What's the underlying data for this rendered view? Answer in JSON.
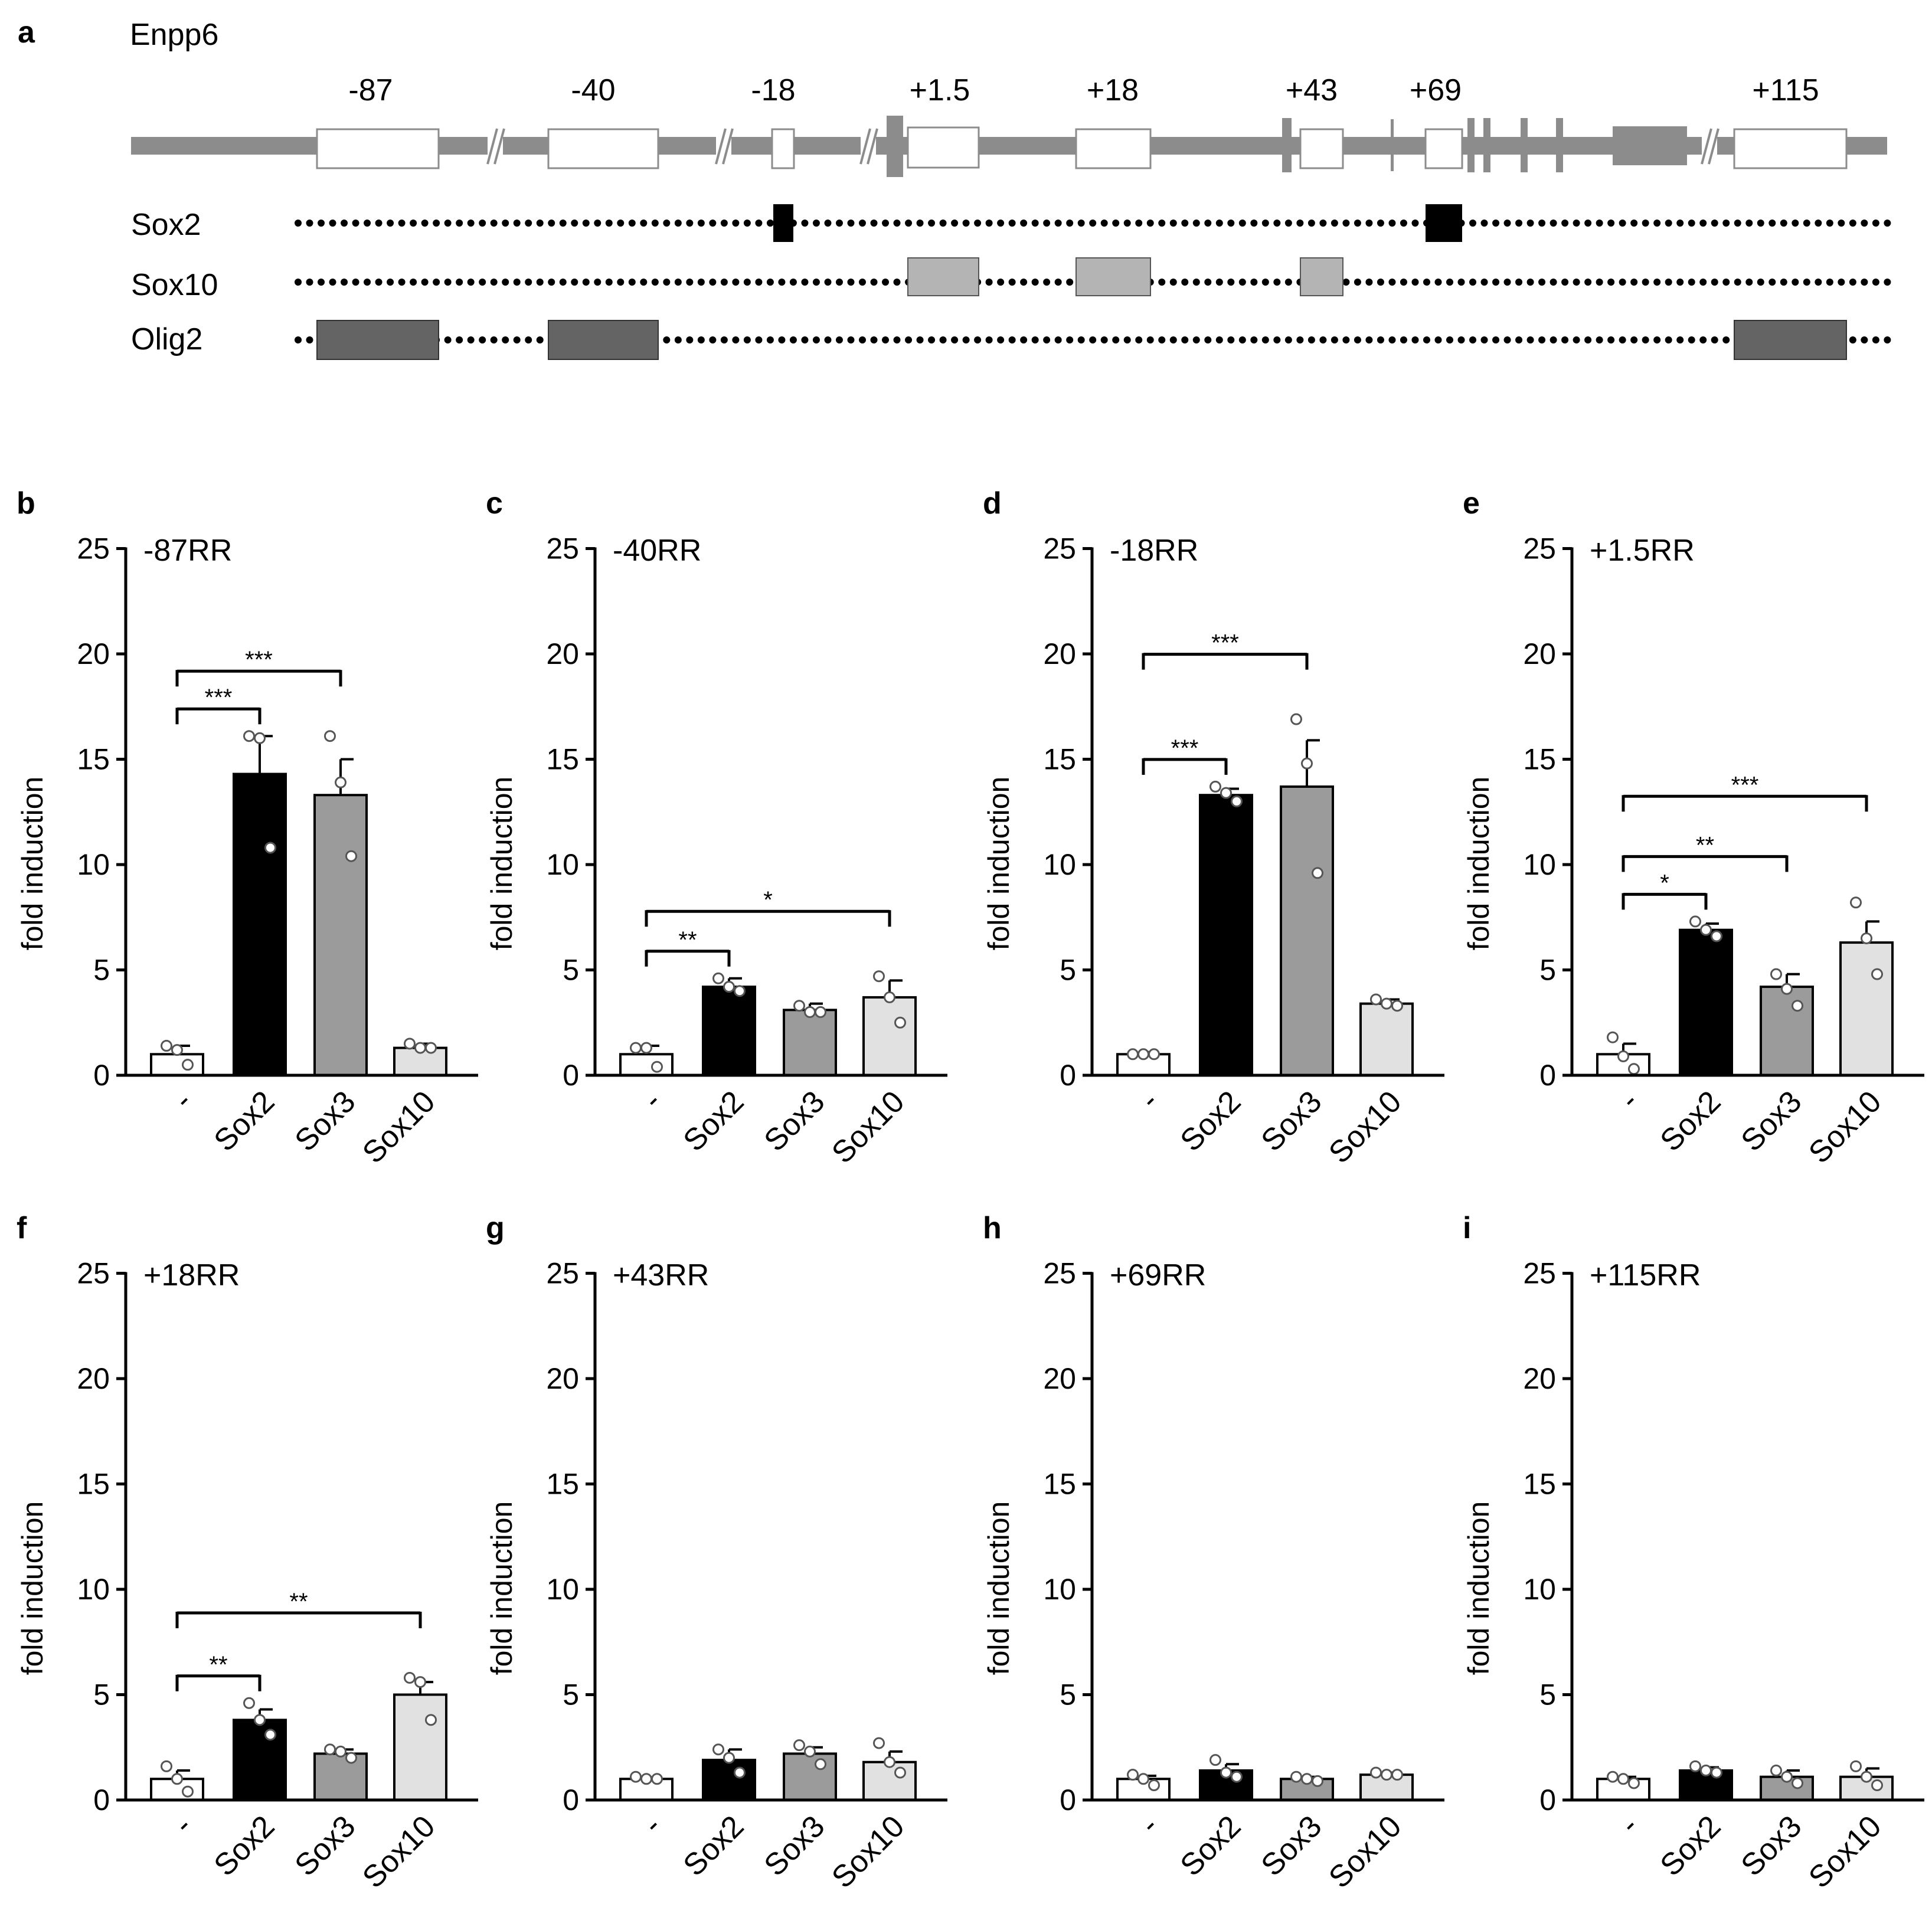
{
  "figure": {
    "gene_panel": {
      "label": "a",
      "gene": "Enpp6",
      "region_labels": [
        "-87",
        "-40",
        "-18",
        "+1.5",
        "+18",
        "+43",
        "+69",
        "+115"
      ],
      "tracks": [
        {
          "name": "Sox2",
          "color": "#000000",
          "regions": [
            "-18",
            "+69"
          ]
        },
        {
          "name": "Sox10",
          "color": "#b4b4b4",
          "regions": [
            "+1.5",
            "+18",
            "+43"
          ]
        },
        {
          "name": "Olig2",
          "color": "#646464",
          "regions": [
            "-87",
            "-40",
            "+115"
          ]
        }
      ],
      "colors": {
        "gene_line": "#8c8c8c"
      }
    }
  },
  "chart_data": [
    {
      "panel": "b",
      "type": "bar",
      "title": "-87RR",
      "ylabel": "fold induction",
      "ylim": [
        0,
        25
      ],
      "yticks": [
        0,
        5,
        10,
        15,
        20,
        25
      ],
      "categories": [
        "-",
        "Sox2",
        "Sox3",
        "Sox10"
      ],
      "values": [
        1.0,
        14.3,
        13.3,
        1.3
      ],
      "errors": [
        0.4,
        1.8,
        1.7,
        0.2
      ],
      "points": [
        [
          1.4,
          1.2,
          0.5
        ],
        [
          16.1,
          16.0,
          10.8
        ],
        [
          16.1,
          13.9,
          10.4
        ],
        [
          1.5,
          1.3,
          1.3
        ]
      ],
      "significance": [
        {
          "from": 0,
          "to": 1,
          "label": "***"
        },
        {
          "from": 0,
          "to": 2,
          "label": "***"
        }
      ]
    },
    {
      "panel": "c",
      "type": "bar",
      "title": "-40RR",
      "ylabel": "fold induction",
      "ylim": [
        0,
        25
      ],
      "yticks": [
        0,
        5,
        10,
        15,
        20,
        25
      ],
      "categories": [
        "-",
        "Sox2",
        "Sox3",
        "Sox10"
      ],
      "values": [
        1.0,
        4.2,
        3.1,
        3.7
      ],
      "errors": [
        0.4,
        0.4,
        0.3,
        0.8
      ],
      "points": [
        [
          1.3,
          1.3,
          0.4
        ],
        [
          4.6,
          4.2,
          4.0
        ],
        [
          3.3,
          3.0,
          3.0
        ],
        [
          4.7,
          3.7,
          2.5
        ]
      ],
      "significance": [
        {
          "from": 0,
          "to": 1,
          "label": "**"
        },
        {
          "from": 0,
          "to": 3,
          "label": "*"
        }
      ]
    },
    {
      "panel": "d",
      "type": "bar",
      "title": "-18RR",
      "ylabel": "fold induction",
      "ylim": [
        0,
        25
      ],
      "yticks": [
        0,
        5,
        10,
        15,
        20,
        25
      ],
      "categories": [
        "-",
        "Sox2",
        "Sox3",
        "Sox10"
      ],
      "values": [
        1.0,
        13.3,
        13.7,
        3.4
      ],
      "errors": [
        0.1,
        0.3,
        2.2,
        0.2
      ],
      "points": [
        [
          1.0,
          1.0,
          1.0
        ],
        [
          13.7,
          13.4,
          13.0
        ],
        [
          16.9,
          14.8,
          9.6
        ],
        [
          3.6,
          3.4,
          3.3
        ]
      ],
      "significance": [
        {
          "from": 0,
          "to": 1,
          "label": "***"
        },
        {
          "from": 0,
          "to": 2,
          "label": "***"
        }
      ]
    },
    {
      "panel": "e",
      "type": "bar",
      "title": "+1.5RR",
      "ylabel": "fold induction",
      "ylim": [
        0,
        25
      ],
      "yticks": [
        0,
        5,
        10,
        15,
        20,
        25
      ],
      "categories": [
        "-",
        "Sox2",
        "Sox3",
        "Sox10"
      ],
      "values": [
        1.0,
        6.9,
        4.2,
        6.3
      ],
      "errors": [
        0.5,
        0.3,
        0.6,
        1.0
      ],
      "points": [
        [
          1.8,
          0.9,
          0.3
        ],
        [
          7.3,
          6.9,
          6.6
        ],
        [
          4.8,
          4.1,
          3.3
        ],
        [
          8.2,
          6.5,
          4.8
        ]
      ],
      "significance": [
        {
          "from": 0,
          "to": 1,
          "label": "*"
        },
        {
          "from": 0,
          "to": 2,
          "label": "**"
        },
        {
          "from": 0,
          "to": 3,
          "label": "***"
        }
      ]
    },
    {
      "panel": "f",
      "type": "bar",
      "title": "+18RR",
      "ylabel": "fold induction",
      "ylim": [
        0,
        25
      ],
      "yticks": [
        0,
        5,
        10,
        15,
        20,
        25
      ],
      "categories": [
        "-",
        "Sox2",
        "Sox3",
        "Sox10"
      ],
      "values": [
        1.0,
        3.8,
        2.2,
        5.0
      ],
      "errors": [
        0.4,
        0.5,
        0.2,
        0.6
      ],
      "points": [
        [
          1.6,
          1.0,
          0.4
        ],
        [
          4.6,
          3.8,
          3.1
        ],
        [
          2.4,
          2.3,
          2.0
        ],
        [
          5.8,
          5.6,
          3.8
        ]
      ],
      "significance": [
        {
          "from": 0,
          "to": 1,
          "label": "**"
        },
        {
          "from": 0,
          "to": 3,
          "label": "**"
        }
      ]
    },
    {
      "panel": "g",
      "type": "bar",
      "title": "+43RR",
      "ylabel": "fold induction",
      "ylim": [
        0,
        25
      ],
      "yticks": [
        0,
        5,
        10,
        15,
        20,
        25
      ],
      "categories": [
        "-",
        "Sox2",
        "Sox3",
        "Sox10"
      ],
      "values": [
        1.0,
        1.9,
        2.2,
        1.8
      ],
      "errors": [
        0.05,
        0.5,
        0.3,
        0.5
      ],
      "points": [
        [
          1.1,
          1.0,
          1.0
        ],
        [
          2.4,
          2.0,
          1.3
        ],
        [
          2.6,
          2.3,
          1.7
        ],
        [
          2.7,
          1.8,
          1.3
        ]
      ],
      "significance": []
    },
    {
      "panel": "h",
      "type": "bar",
      "title": "+69RR",
      "ylabel": "fold induction",
      "ylim": [
        0,
        25
      ],
      "yticks": [
        0,
        5,
        10,
        15,
        20,
        25
      ],
      "categories": [
        "-",
        "Sox2",
        "Sox3",
        "Sox10"
      ],
      "values": [
        1.0,
        1.4,
        1.0,
        1.2
      ],
      "errors": [
        0.15,
        0.3,
        0.1,
        0.1
      ],
      "points": [
        [
          1.2,
          1.0,
          0.7
        ],
        [
          1.9,
          1.3,
          1.1
        ],
        [
          1.1,
          1.0,
          0.9
        ],
        [
          1.3,
          1.2,
          1.2
        ]
      ],
      "significance": []
    },
    {
      "panel": "i",
      "type": "bar",
      "title": "+115RR",
      "ylabel": "fold induction",
      "ylim": [
        0,
        25
      ],
      "yticks": [
        0,
        5,
        10,
        15,
        20,
        25
      ],
      "categories": [
        "-",
        "Sox2",
        "Sox3",
        "Sox10"
      ],
      "values": [
        1.0,
        1.4,
        1.1,
        1.1
      ],
      "errors": [
        0.1,
        0.15,
        0.3,
        0.4
      ],
      "points": [
        [
          1.1,
          1.0,
          0.8
        ],
        [
          1.6,
          1.4,
          1.3
        ],
        [
          1.4,
          1.1,
          0.8
        ],
        [
          1.6,
          1.1,
          0.7
        ]
      ],
      "significance": []
    }
  ],
  "colors": {
    "bars": [
      "#ffffff",
      "#000000",
      "#9b9b9b",
      "#e1e1e1"
    ],
    "axis": "#000000"
  }
}
